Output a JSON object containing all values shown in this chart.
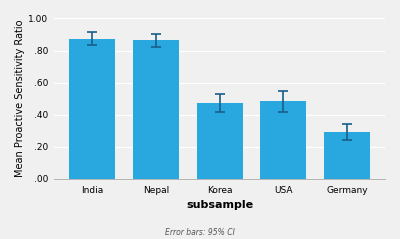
{
  "categories": [
    "India",
    "Nepal",
    "Korea",
    "USA",
    "Germany"
  ],
  "values": [
    0.875,
    0.865,
    0.475,
    0.485,
    0.295
  ],
  "errors": [
    0.04,
    0.04,
    0.055,
    0.065,
    0.05
  ],
  "bar_color": "#29A8E0",
  "error_color": "#1a5e8a",
  "ylabel": "Mean Proactive Sensitivity Ratio",
  "xlabel": "subsample",
  "footnote": "Error bars: 95% CI",
  "ylim": [
    0.0,
    1.0
  ],
  "ytick_vals": [
    0.0,
    0.2,
    0.4,
    0.6,
    0.8,
    1.0
  ],
  "ytick_labels": [
    ".00",
    ".20",
    ".40",
    ".60",
    ".80",
    "1.00"
  ],
  "background_color": "#f0f0f0",
  "grid_color": "#ffffff",
  "axis_fontsize": 7,
  "tick_fontsize": 6.5,
  "xlabel_fontsize": 8,
  "footnote_fontsize": 5.5,
  "bar_width": 0.72
}
